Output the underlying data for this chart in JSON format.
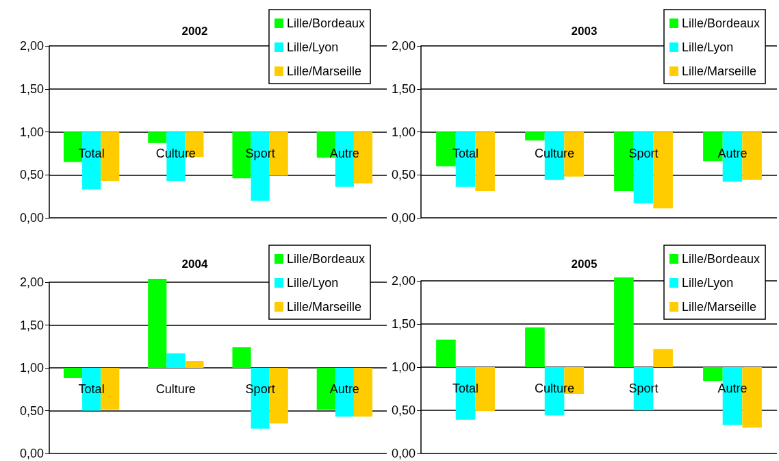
{
  "chart_data": [
    {
      "type": "bar",
      "title": "2002",
      "categories": [
        "Total",
        "Culture",
        "Sport",
        "Autre"
      ],
      "ylim": [
        0,
        2
      ],
      "yticks": [
        {
          "value": 0,
          "label": "0,00"
        },
        {
          "value": 0.5,
          "label": "0,50"
        },
        {
          "value": 1,
          "label": "1,00"
        },
        {
          "value": 1.5,
          "label": "1,50"
        },
        {
          "value": 2,
          "label": "2,00"
        }
      ],
      "grid": "y",
      "legend": "top right",
      "series": [
        {
          "name": "Lille/Bordeaux",
          "color": "#00ff00",
          "base": [
            1,
            1,
            1,
            1
          ],
          "values": [
            -0.35,
            -0.13,
            -0.54,
            -0.3
          ]
        },
        {
          "name": "Lille/Lyon",
          "color": "#00ffff",
          "base": [
            1,
            1,
            1,
            1
          ],
          "values": [
            -0.67,
            -0.57,
            -0.8,
            -0.64
          ]
        },
        {
          "name": "Lille/Marseille",
          "color": "#ffcc00",
          "base": [
            1,
            1,
            1,
            1
          ],
          "values": [
            -0.57,
            -0.29,
            -0.51,
            -0.6
          ]
        }
      ]
    },
    {
      "type": "bar",
      "title": "2003",
      "categories": [
        "Total",
        "Culture",
        "Sport",
        "Autre"
      ],
      "ylim": [
        0,
        2
      ],
      "yticks": [
        {
          "value": 0,
          "label": "0,00"
        },
        {
          "value": 0.5,
          "label": "0,50"
        },
        {
          "value": 1,
          "label": "1,00"
        },
        {
          "value": 1.5,
          "label": "1,50"
        },
        {
          "value": 2,
          "label": "2,00"
        }
      ],
      "grid": "y",
      "legend": "top right",
      "series": [
        {
          "name": "Lille/Bordeaux",
          "color": "#00ff00",
          "base": [
            1,
            1,
            1,
            1
          ],
          "values": [
            -0.4,
            -0.1,
            -0.69,
            -0.34
          ]
        },
        {
          "name": "Lille/Lyon",
          "color": "#00ffff",
          "base": [
            1,
            1,
            1,
            1
          ],
          "values": [
            -0.64,
            -0.56,
            -0.83,
            -0.58
          ]
        },
        {
          "name": "Lille/Marseille",
          "color": "#ffcc00",
          "base": [
            1,
            1,
            1,
            1
          ],
          "values": [
            -0.69,
            -0.52,
            -0.89,
            -0.56
          ]
        }
      ]
    },
    {
      "type": "bar",
      "title": "2004",
      "categories": [
        "Total",
        "Culture",
        "Sport",
        "Autre"
      ],
      "ylim": [
        0,
        2
      ],
      "yticks": [
        {
          "value": 0,
          "label": "0,00"
        },
        {
          "value": 0.5,
          "label": "0,50"
        },
        {
          "value": 1,
          "label": "1,00"
        },
        {
          "value": 1.5,
          "label": "1,50"
        },
        {
          "value": 2,
          "label": "2,00"
        }
      ],
      "grid": "y",
      "legend": "top right",
      "series": [
        {
          "name": "Lille/Bordeaux",
          "color": "#00ff00",
          "base": [
            1,
            1,
            1,
            1
          ],
          "values": [
            -0.12,
            1.04,
            0.24,
            -0.49
          ]
        },
        {
          "name": "Lille/Lyon",
          "color": "#00ffff",
          "base": [
            1,
            1,
            1,
            1
          ],
          "values": [
            -0.5,
            0.17,
            -0.71,
            -0.57
          ]
        },
        {
          "name": "Lille/Marseille",
          "color": "#ffcc00",
          "base": [
            1,
            1,
            1,
            1
          ],
          "values": [
            -0.49,
            0.08,
            -0.65,
            -0.57
          ]
        }
      ]
    },
    {
      "type": "bar",
      "title": "2005",
      "categories": [
        "Total",
        "Culture",
        "Sport",
        "Autre"
      ],
      "ylim": [
        0,
        2
      ],
      "yticks": [
        {
          "value": 0,
          "label": "0,00"
        },
        {
          "value": 0.5,
          "label": "0,50"
        },
        {
          "value": 1,
          "label": "1,00"
        },
        {
          "value": 1.5,
          "label": "1,50"
        },
        {
          "value": 2,
          "label": "2,00"
        }
      ],
      "grid": "y",
      "legend": "top right",
      "series": [
        {
          "name": "Lille/Bordeaux",
          "color": "#00ff00",
          "base": [
            1,
            1,
            1,
            1
          ],
          "values": [
            0.32,
            0.46,
            1.04,
            -0.16
          ]
        },
        {
          "name": "Lille/Lyon",
          "color": "#00ffff",
          "base": [
            1,
            1,
            1,
            1
          ],
          "values": [
            -0.61,
            -0.56,
            -0.5,
            -0.67
          ]
        },
        {
          "name": "Lille/Marseille",
          "color": "#ffcc00",
          "base": [
            1,
            1,
            1,
            1
          ],
          "values": [
            -0.51,
            -0.31,
            0.21,
            -0.7
          ]
        }
      ]
    }
  ]
}
